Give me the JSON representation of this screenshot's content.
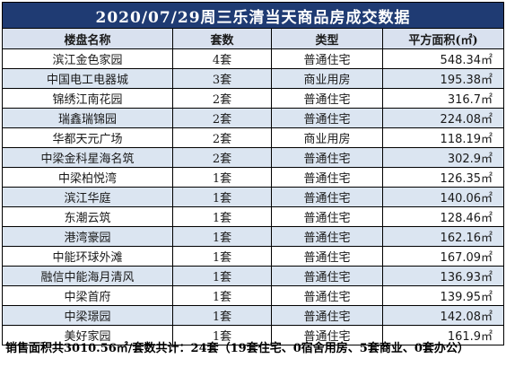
{
  "title": "2020/07/29周三乐清当天商品房成交数据",
  "headers": {
    "name": "楼盘名称",
    "count": "套数",
    "type": "类型",
    "area": "平方面积(㎡)"
  },
  "rows": [
    {
      "name": "滨江金色家园",
      "count": "4套",
      "type": "普通住宅",
      "area": "548.34㎡"
    },
    {
      "name": "中国电工电器城",
      "count": "3套",
      "type": "商业用房",
      "area": "195.38㎡"
    },
    {
      "name": "锦绣江南花园",
      "count": "2套",
      "type": "普通住宅",
      "area": "316.7㎡"
    },
    {
      "name": "瑞鑫瑞锦园",
      "count": "2套",
      "type": "普通住宅",
      "area": "224.08㎡"
    },
    {
      "name": "华都天元广场",
      "count": "2套",
      "type": "商业用房",
      "area": "118.19㎡"
    },
    {
      "name": "中梁金科星海名筑",
      "count": "2套",
      "type": "普通住宅",
      "area": "302.9㎡"
    },
    {
      "name": "中梁柏悦湾",
      "count": "1套",
      "type": "普通住宅",
      "area": "126.35㎡"
    },
    {
      "name": "滨江华庭",
      "count": "1套",
      "type": "普通住宅",
      "area": "140.06㎡"
    },
    {
      "name": "东潮云筑",
      "count": "1套",
      "type": "普通住宅",
      "area": "128.46㎡"
    },
    {
      "name": "港湾豪园",
      "count": "1套",
      "type": "普通住宅",
      "area": "162.16㎡"
    },
    {
      "name": "中能环球外滩",
      "count": "1套",
      "type": "普通住宅",
      "area": "167.09㎡"
    },
    {
      "name": "融信中能海月清风",
      "count": "1套",
      "type": "普通住宅",
      "area": "136.93㎡"
    },
    {
      "name": "中梁首府",
      "count": "1套",
      "type": "普通住宅",
      "area": "139.95㎡"
    },
    {
      "name": "中梁璟园",
      "count": "1套",
      "type": "普通住宅",
      "area": "142.08㎡"
    },
    {
      "name": "美好家园",
      "count": "1套",
      "type": "普通住宅",
      "area": "161.9㎡"
    }
  ],
  "summary": "销售面积共3010.56㎡/套数共计：24套（19套住宅、0宿舍用房、5套商业、0套办公）",
  "colors": {
    "title_bg": "#1f3b73",
    "header_bg": "#d9e1ef",
    "stripe_bg": "#dbe5f1"
  }
}
